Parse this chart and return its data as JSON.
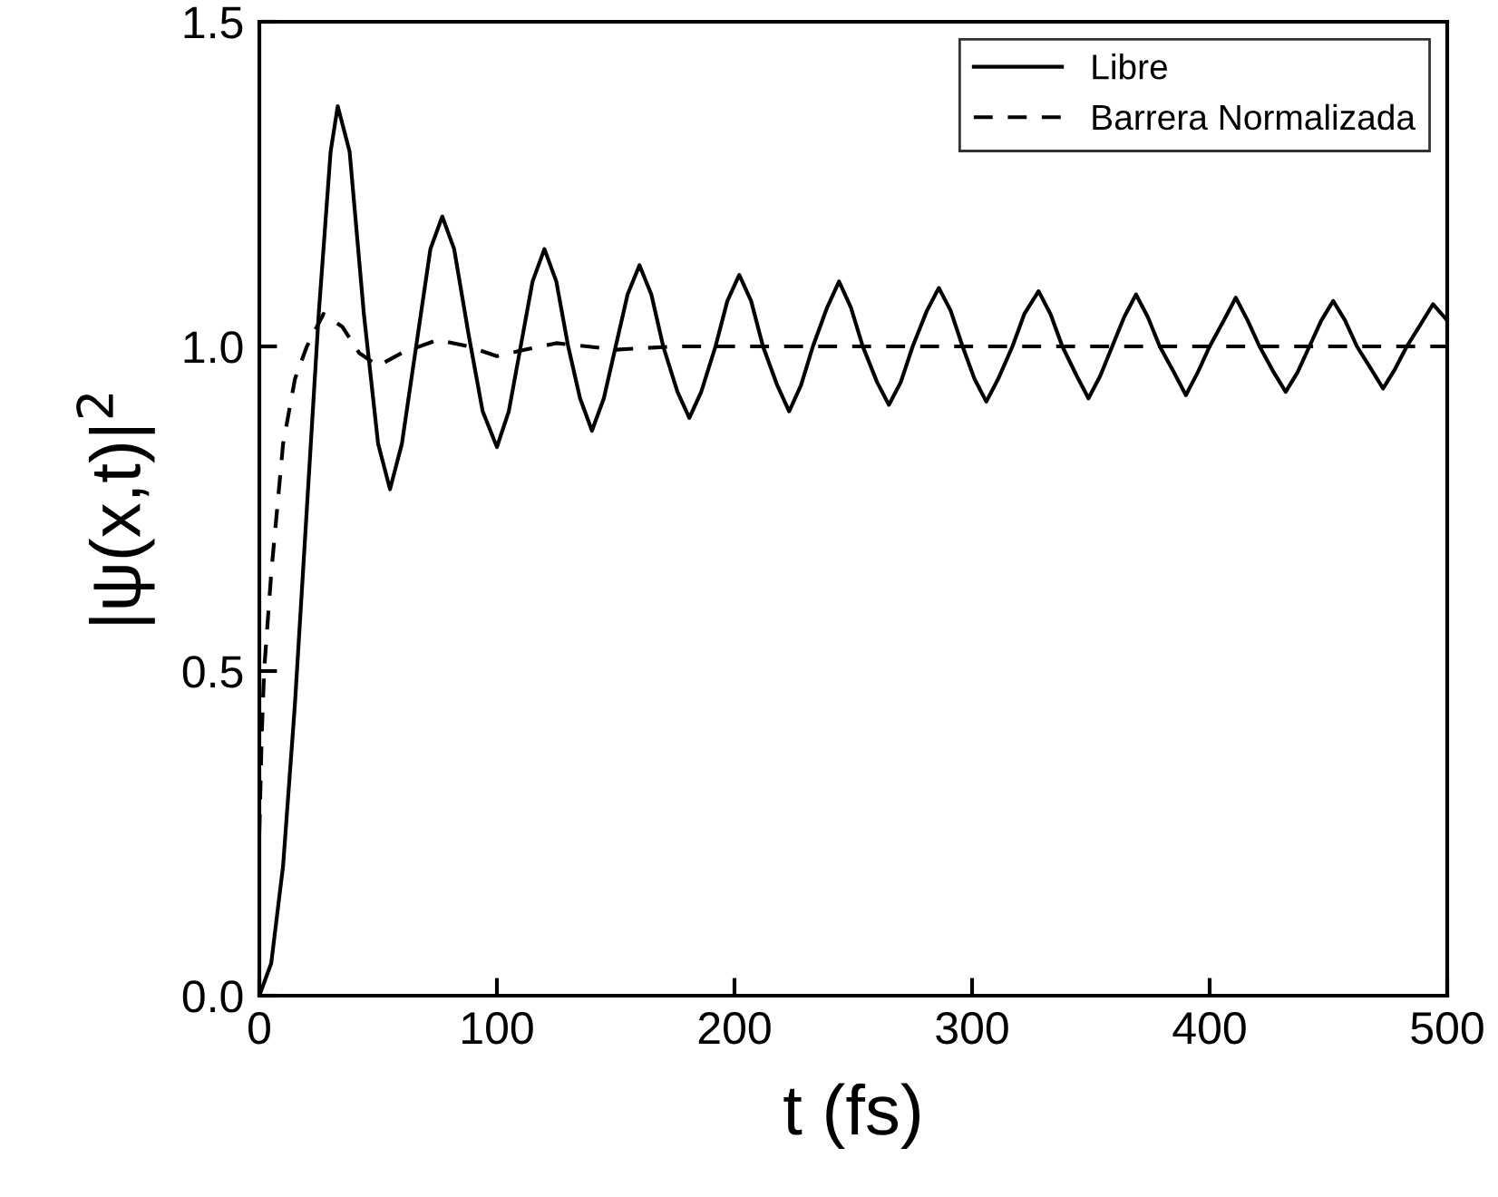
{
  "chart_data": {
    "type": "line",
    "xlabel": "t (fs)",
    "ylabel": "|ψ(x,t)|$^{2}$",
    "xlim": [
      0,
      500
    ],
    "ylim": [
      0,
      1.5
    ],
    "xticks": [
      0,
      100,
      200,
      300,
      400,
      500
    ],
    "yticks": [
      {
        "value": 0,
        "label": "0.0"
      },
      0.5,
      {
        "value": 1,
        "label": "1.0"
      },
      1.5
    ],
    "grid": false,
    "legend": "top right",
    "series": [
      {
        "name": "Libre",
        "color": "#000000",
        "line_style": "solid",
        "x": [
          0,
          5,
          10,
          15,
          20,
          25,
          30,
          33,
          38,
          44,
          50,
          55,
          60,
          66,
          72,
          77,
          82,
          88,
          94,
          100,
          105,
          110,
          115,
          120,
          125,
          130,
          135,
          140,
          145,
          150,
          155,
          160,
          165,
          170,
          176,
          181,
          186,
          192,
          197,
          202,
          207,
          212,
          218,
          223,
          228,
          233,
          239,
          244,
          249,
          254,
          260,
          265,
          270,
          275,
          281,
          286,
          291,
          296,
          301,
          306,
          311,
          317,
          322,
          328,
          333,
          338,
          344,
          349,
          354,
          359,
          364,
          369,
          374,
          379,
          385,
          390,
          395,
          400,
          406,
          411,
          416,
          421,
          427,
          432,
          437,
          442,
          447,
          452,
          457,
          462,
          468,
          473,
          478,
          483,
          489,
          494,
          500
        ],
        "values": [
          0,
          0.05,
          0.2,
          0.45,
          0.75,
          1.05,
          1.3,
          1.37,
          1.3,
          1.05,
          0.85,
          0.78,
          0.85,
          1.0,
          1.15,
          1.2,
          1.15,
          1.02,
          0.9,
          0.845,
          0.9,
          1.0,
          1.1,
          1.15,
          1.1,
          1.0,
          0.92,
          0.87,
          0.92,
          1.0,
          1.08,
          1.125,
          1.08,
          1.0,
          0.93,
          0.89,
          0.93,
          1.0,
          1.07,
          1.11,
          1.07,
          1.0,
          0.94,
          0.9,
          0.94,
          1.0,
          1.06,
          1.1,
          1.06,
          1.0,
          0.945,
          0.91,
          0.945,
          1.0,
          1.055,
          1.09,
          1.055,
          1.0,
          0.95,
          0.915,
          0.95,
          1.0,
          1.05,
          1.085,
          1.05,
          1.0,
          0.955,
          0.92,
          0.955,
          1.0,
          1.045,
          1.08,
          1.045,
          1.0,
          0.96,
          0.925,
          0.96,
          1.0,
          1.04,
          1.075,
          1.04,
          1.0,
          0.96,
          0.93,
          0.96,
          1.0,
          1.04,
          1.07,
          1.04,
          1.0,
          0.965,
          0.935,
          0.965,
          1.0,
          1.035,
          1.065,
          1.04
        ]
      },
      {
        "name": "Barrera Normalizada",
        "color": "#000000",
        "line_style": "dashed",
        "x": [
          0,
          1,
          2,
          5,
          10,
          15,
          20,
          27,
          35,
          42,
          50,
          60,
          75,
          88,
          100,
          112,
          125,
          138,
          150,
          175,
          200,
          250,
          300,
          350,
          400,
          450,
          500
        ],
        "values": [
          0.25,
          0.4,
          0.5,
          0.65,
          0.85,
          0.95,
          1.0,
          1.05,
          1.03,
          0.99,
          0.97,
          0.99,
          1.01,
          1.0,
          0.985,
          0.995,
          1.005,
          1.0,
          0.995,
          1.0,
          1.0,
          1.0,
          1.0,
          1.0,
          1.0,
          1.0,
          1.0
        ]
      }
    ]
  }
}
